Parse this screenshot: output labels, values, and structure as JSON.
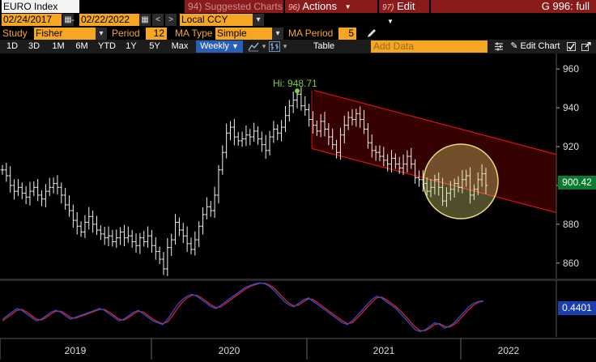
{
  "title_bar": {
    "security": "EURO Index",
    "suggested": "94) Suggested Charts",
    "actions_num": "96)",
    "actions": "Actions",
    "edit_num": "97)",
    "edit": "Edit",
    "function": "G 996: full"
  },
  "dates": {
    "start": "02/24/2017",
    "end": "02/22/2022",
    "dash": "-",
    "currency": "Local CCY"
  },
  "study": {
    "study_label": "Study",
    "study_value": "Fisher",
    "period_label": "Period",
    "period_value": "12",
    "ma_type_label": "MA Type",
    "ma_type_value": "Simple",
    "ma_period_label": "MA Period",
    "ma_period_value": "5"
  },
  "toolbar": {
    "ranges": [
      "1D",
      "3D",
      "1M",
      "6M",
      "YTD",
      "1Y",
      "5Y",
      "Max"
    ],
    "frequency": "Weekly",
    "table": "Table",
    "add_data_placeholder": "Add Data",
    "edit_chart": "Edit Chart"
  },
  "chart_data": {
    "type": "line",
    "series_style": "ohlc-bars",
    "x_range": [
      "2017-02-24",
      "2022-02-22"
    ],
    "x_tick_labels": [
      "2019",
      "2020",
      "2021",
      "2022"
    ],
    "y_ticks": [
      860,
      880,
      900,
      920,
      940,
      960
    ],
    "ylim": [
      852,
      968
    ],
    "high_annotation": "Hi: 948.71",
    "high_value": 948.71,
    "last_price": "900.42",
    "oscillator_value": "0.4401",
    "price_series_weekly_close": [
      908,
      905,
      900,
      897,
      899,
      896,
      894,
      897,
      899,
      895,
      893,
      897,
      899,
      901,
      899,
      895,
      890,
      887,
      882,
      879,
      876,
      881,
      884,
      880,
      877,
      875,
      873,
      874,
      871,
      873,
      876,
      873,
      874,
      871,
      869,
      873,
      871,
      874,
      869,
      866,
      862,
      857,
      868,
      872,
      881,
      877,
      874,
      870,
      867,
      872,
      879,
      885,
      889,
      887,
      895,
      908,
      917,
      927,
      930,
      925,
      923,
      924,
      926,
      925,
      928,
      924,
      921,
      918,
      925,
      929,
      927,
      930,
      936,
      941,
      944,
      947,
      941,
      939,
      934,
      931,
      928,
      933,
      929,
      925,
      921,
      917,
      926,
      931,
      935,
      934,
      937,
      934,
      929,
      922,
      918,
      917,
      915,
      913,
      911,
      914,
      911,
      909,
      911,
      915,
      911,
      904,
      903,
      901,
      897,
      899,
      903,
      899,
      892,
      896,
      898,
      901,
      899,
      903,
      905,
      895,
      898,
      903,
      906,
      900
    ],
    "channel": {
      "upper": [
        [
          105,
          949
        ],
        [
          136,
          916
        ]
      ],
      "lower": [
        [
          105,
          919
        ],
        [
          136,
          886
        ]
      ]
    },
    "highlight_circle": "yellow",
    "oscillator_series": {
      "fisher": [
        -0.6,
        -0.4,
        -0.2,
        0.0,
        -0.1,
        -0.3,
        -0.5,
        -0.7,
        -0.6,
        -0.4,
        -0.2,
        -0.1,
        -0.2,
        -0.4,
        -0.6,
        -0.5,
        -0.4,
        -0.3,
        -0.2,
        -0.1,
        0.0,
        -0.1,
        -0.3,
        -0.5,
        -0.7,
        -0.6,
        -0.4,
        -0.2,
        -0.1,
        -0.3,
        -0.5,
        -0.7,
        -0.8,
        -0.9,
        -0.6,
        -0.2,
        0.2,
        0.5,
        0.7,
        0.8,
        0.7,
        0.5,
        0.3,
        0.1,
        0.0,
        0.2,
        0.4,
        0.6,
        0.8,
        1.0,
        1.2,
        1.3,
        1.4,
        1.45,
        1.4,
        1.25,
        1.0,
        0.7,
        0.4,
        0.2,
        0.1,
        0.3,
        0.5,
        0.6,
        0.4,
        0.2,
        0.0,
        -0.2,
        -0.4,
        -0.6,
        -0.8,
        -0.9,
        -0.7,
        -0.4,
        -0.1,
        0.2,
        0.5,
        0.7,
        0.6,
        0.4,
        0.2,
        0.0,
        -0.3,
        -0.6,
        -0.9,
        -1.2,
        -1.3,
        -1.2,
        -1.0,
        -0.8,
        -0.9,
        -1.1,
        -1.0,
        -0.8,
        -0.5,
        -0.2,
        0.1,
        0.3,
        0.4,
        0.44
      ],
      "trigger": [
        -0.7,
        -0.5,
        -0.3,
        -0.1,
        -0.05,
        -0.2,
        -0.4,
        -0.6,
        -0.65,
        -0.5,
        -0.3,
        -0.15,
        -0.15,
        -0.3,
        -0.5,
        -0.55,
        -0.45,
        -0.35,
        -0.25,
        -0.15,
        -0.05,
        -0.05,
        -0.2,
        -0.4,
        -0.6,
        -0.65,
        -0.5,
        -0.3,
        -0.15,
        -0.2,
        -0.4,
        -0.6,
        -0.75,
        -0.85,
        -0.75,
        -0.4,
        0.0,
        0.35,
        0.6,
        0.75,
        0.75,
        0.6,
        0.4,
        0.2,
        0.05,
        0.1,
        0.3,
        0.5,
        0.7,
        0.9,
        1.1,
        1.25,
        1.35,
        1.43,
        1.43,
        1.33,
        1.13,
        0.85,
        0.55,
        0.3,
        0.15,
        0.2,
        0.4,
        0.55,
        0.5,
        0.3,
        0.1,
        -0.1,
        -0.3,
        -0.5,
        -0.7,
        -0.85,
        -0.8,
        -0.55,
        -0.25,
        0.05,
        0.35,
        0.6,
        0.65,
        0.5,
        0.3,
        0.1,
        -0.15,
        -0.45,
        -0.75,
        -1.05,
        -1.25,
        -1.25,
        -1.1,
        -0.9,
        -0.85,
        -1.0,
        -1.05,
        -0.9,
        -0.65,
        -0.35,
        -0.05,
        0.2,
        0.35,
        0.42
      ]
    }
  },
  "colors": {
    "title_red": "#8a1b1b",
    "orange_field": "#f5a623",
    "price_label": "#0a7a2e",
    "osc_label": "#1a3fb0",
    "channel_line": "#e01010",
    "channel_fill": "#3a0000",
    "circle": "#e8e07a",
    "hi_label": "#7ad03a"
  }
}
